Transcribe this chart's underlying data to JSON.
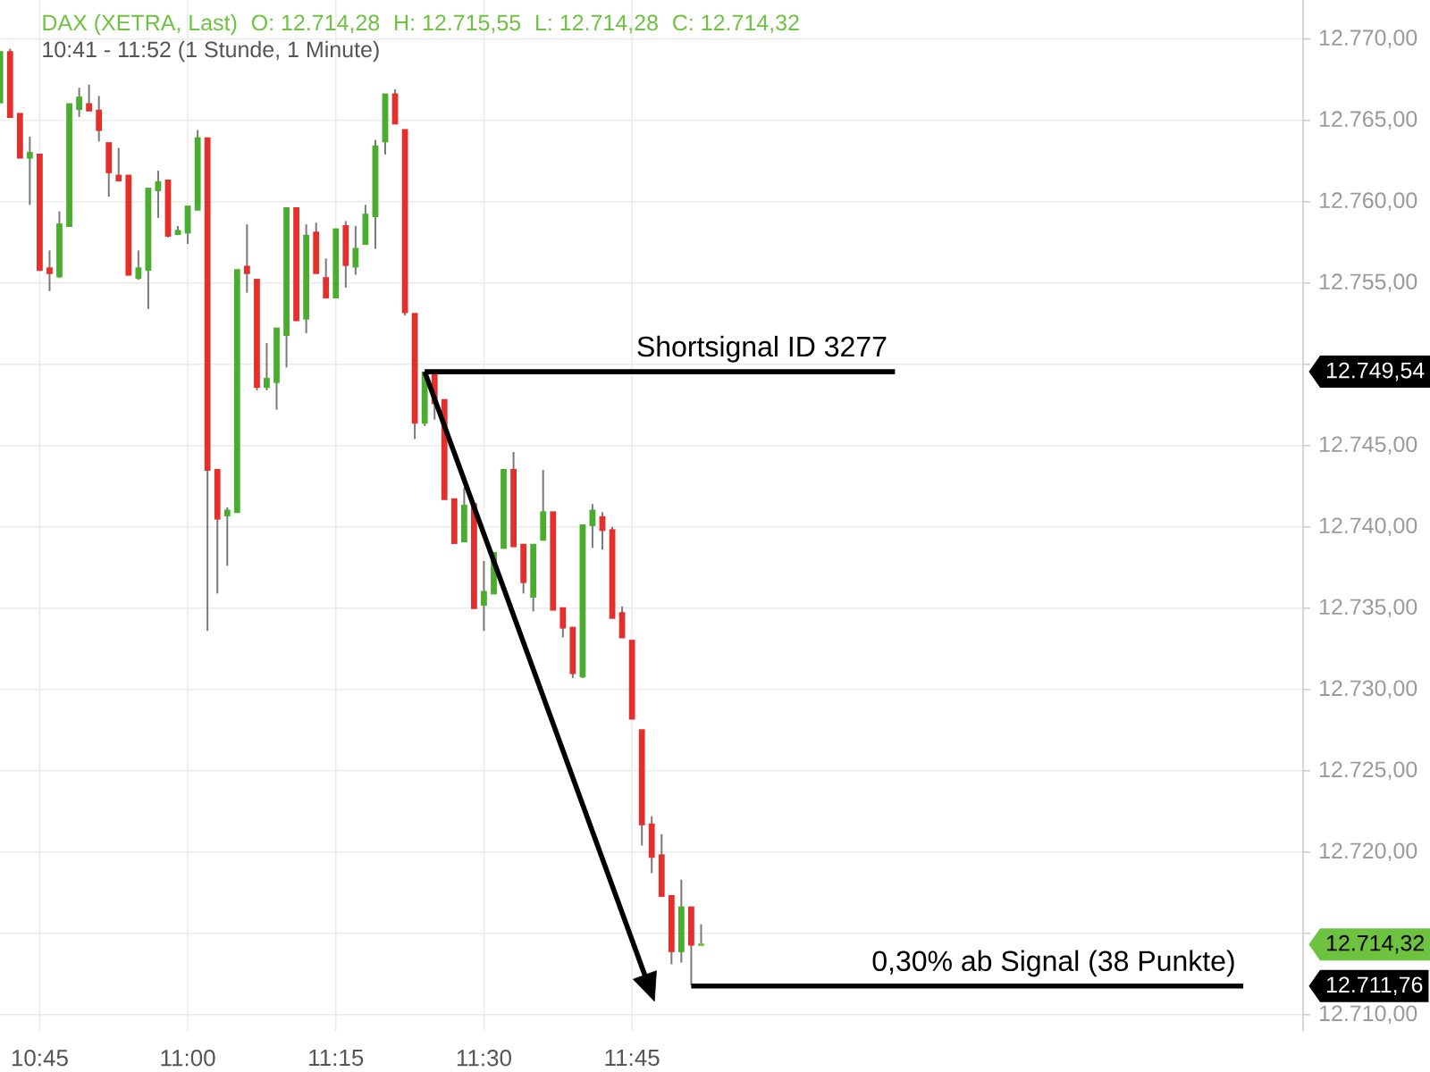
{
  "chart_data": {
    "type": "candlestick",
    "title": "DAX (XETRA, Last)",
    "subtitle": "10:41 - 11:52  (1 Stunde, 1 Minute)",
    "annotations": [
      "O: 12.714,28",
      "H: 12.715,55",
      "L: 12.714,28",
      "C: 12.714,32"
    ],
    "x": [
      10.6833,
      10.7,
      10.7167,
      10.7333,
      10.75,
      10.7667,
      10.7833,
      10.8,
      10.8167,
      10.8333,
      10.85,
      10.8667,
      10.8833,
      10.9,
      10.9167,
      10.9333,
      10.95,
      10.9667,
      10.9833,
      11.0,
      11.0167,
      11.0333,
      11.05,
      11.0667,
      11.0833,
      11.1,
      11.1167,
      11.1333,
      11.15,
      11.1667,
      11.1833,
      11.2,
      11.2167,
      11.2333,
      11.25,
      11.2667,
      11.2833,
      11.3,
      11.3167,
      11.3333,
      11.35,
      11.3667,
      11.3833,
      11.4,
      11.4167,
      11.4333,
      11.45,
      11.4667,
      11.4833,
      11.5,
      11.5167,
      11.5333,
      11.55,
      11.5667,
      11.5833,
      11.6,
      11.6167,
      11.6333,
      11.65,
      11.6667,
      11.6833,
      11.7,
      11.7167,
      11.7333,
      11.75,
      11.7667,
      11.7833,
      11.8,
      11.8167,
      11.8333,
      11.85,
      11.8667
    ],
    "ohlc": [
      [
        12766.1,
        12769.2,
        12766.1,
        12769.2
      ],
      [
        12769.2,
        12769.4,
        12765.2,
        12765.2
      ],
      [
        12765.4,
        12765.4,
        12762.7,
        12762.7
      ],
      [
        12762.7,
        12764.0,
        12759.8,
        12763.0
      ],
      [
        12762.9,
        12762.9,
        12755.8,
        12755.8
      ],
      [
        12755.9,
        12757.0,
        12754.5,
        12755.6
      ],
      [
        12755.4,
        12759.4,
        12755.3,
        12758.6
      ],
      [
        12758.5,
        12766.0,
        12758.5,
        12766.0
      ],
      [
        12765.7,
        12767.0,
        12765.2,
        12766.4
      ],
      [
        12766.0,
        12767.2,
        12765.6,
        12765.6
      ],
      [
        12765.6,
        12766.5,
        12763.7,
        12764.4
      ],
      [
        12763.6,
        12763.6,
        12760.3,
        12761.8
      ],
      [
        12761.6,
        12763.3,
        12761.3,
        12761.3
      ],
      [
        12761.6,
        12761.6,
        12755.5,
        12755.5
      ],
      [
        12755.3,
        12757.0,
        12755.2,
        12755.9
      ],
      [
        12755.8,
        12760.8,
        12753.4,
        12760.8
      ],
      [
        12760.7,
        12761.9,
        12759.0,
        12761.2
      ],
      [
        12761.3,
        12761.3,
        12757.8,
        12757.9
      ],
      [
        12758.0,
        12758.5,
        12758.0,
        12758.2
      ],
      [
        12758.1,
        12759.7,
        12757.4,
        12759.7
      ],
      [
        12759.5,
        12764.4,
        12759.5,
        12763.9
      ],
      [
        12763.9,
        12763.9,
        12733.6,
        12743.5
      ],
      [
        12743.5,
        12743.5,
        12735.9,
        12740.5
      ],
      [
        12740.7,
        12741.2,
        12737.6,
        12741.0
      ],
      [
        12740.9,
        12755.8,
        12740.9,
        12755.8
      ],
      [
        12756.0,
        12758.6,
        12754.4,
        12755.6
      ],
      [
        12755.2,
        12755.2,
        12748.4,
        12748.6
      ],
      [
        12748.6,
        12751.3,
        12748.4,
        12749.1
      ],
      [
        12748.9,
        12752.2,
        12747.2,
        12752.2
      ],
      [
        12751.8,
        12759.6,
        12749.8,
        12759.6
      ],
      [
        12759.6,
        12759.6,
        12752.7,
        12752.7
      ],
      [
        12752.8,
        12758.6,
        12751.9,
        12757.9
      ],
      [
        12758.1,
        12758.7,
        12755.6,
        12755.6
      ],
      [
        12755.3,
        12756.5,
        12754.1,
        12754.1
      ],
      [
        12754.1,
        12758.3,
        12754.1,
        12758.3
      ],
      [
        12758.5,
        12758.8,
        12754.7,
        12756.1
      ],
      [
        12756.0,
        12758.5,
        12755.5,
        12757.1
      ],
      [
        12757.4,
        12759.8,
        12757.4,
        12759.2
      ],
      [
        12759.1,
        12763.8,
        12757.1,
        12763.4
      ],
      [
        12763.7,
        12766.6,
        12762.9,
        12766.6
      ],
      [
        12766.6,
        12766.9,
        12764.8,
        12764.8
      ],
      [
        12764.4,
        12764.4,
        12753.0,
        12753.2
      ],
      [
        12753.1,
        12753.1,
        12745.4,
        12746.4
      ],
      [
        12746.4,
        12749.5,
        12746.2,
        12749.5
      ],
      [
        12749.4,
        12749.4,
        12746.6,
        12747.6
      ],
      [
        12747.8,
        12747.8,
        12741.7,
        12741.7
      ],
      [
        12741.7,
        12741.7,
        12739.0,
        12739.0
      ],
      [
        12739.1,
        12742.4,
        12739.1,
        12741.3
      ],
      [
        12741.4,
        12741.4,
        12735.0,
        12735.0
      ],
      [
        12735.2,
        12737.9,
        12733.6,
        12736.0
      ],
      [
        12735.9,
        12738.4,
        12735.9,
        12738.4
      ],
      [
        12738.7,
        12743.5,
        12738.7,
        12743.5
      ],
      [
        12743.5,
        12744.6,
        12738.8,
        12738.8
      ],
      [
        12738.9,
        12738.9,
        12735.9,
        12736.6
      ],
      [
        12735.7,
        12738.9,
        12734.8,
        12738.9
      ],
      [
        12739.2,
        12743.5,
        12739.2,
        12740.9
      ],
      [
        12740.9,
        12740.9,
        12734.9,
        12734.9
      ],
      [
        12735.0,
        12735.0,
        12733.2,
        12733.8
      ],
      [
        12733.8,
        12733.8,
        12730.7,
        12731.0
      ],
      [
        12730.8,
        12740.1,
        12730.7,
        12740.1
      ],
      [
        12740.1,
        12741.4,
        12738.7,
        12741.0
      ],
      [
        12740.6,
        12740.9,
        12738.6,
        12739.8
      ],
      [
        12739.8,
        12740.0,
        12734.4,
        12734.4
      ],
      [
        12734.7,
        12735.1,
        12733.2,
        12733.2
      ],
      [
        12733.0,
        12733.0,
        12728.2,
        12728.2
      ],
      [
        12727.5,
        12727.5,
        12720.4,
        12721.7
      ],
      [
        12721.7,
        12722.2,
        12718.7,
        12719.7
      ],
      [
        12719.8,
        12721.1,
        12717.3,
        12717.3
      ],
      [
        12717.3,
        12717.3,
        12713.1,
        12713.9
      ],
      [
        12713.9,
        12718.3,
        12713.2,
        12716.6
      ],
      [
        12716.6,
        12716.6,
        12711.8,
        12714.3
      ],
      [
        12714.28,
        12715.55,
        12714.28,
        12714.32
      ]
    ],
    "colors": [
      "#4aad2f",
      "#e3302d",
      "#e3302d",
      "#4aad2f",
      "#e3302d",
      "#e3302d",
      "#4aad2f",
      "#4aad2f",
      "#4aad2f",
      "#e3302d",
      "#e3302d",
      "#e3302d",
      "#e3302d",
      "#e3302d",
      "#4aad2f",
      "#4aad2f",
      "#4aad2f",
      "#e3302d",
      "#4aad2f",
      "#4aad2f",
      "#4aad2f",
      "#e3302d",
      "#e3302d",
      "#4aad2f",
      "#4aad2f",
      "#e3302d",
      "#e3302d",
      "#4aad2f",
      "#4aad2f",
      "#4aad2f",
      "#e3302d",
      "#4aad2f",
      "#e3302d",
      "#e3302d",
      "#4aad2f",
      "#e3302d",
      "#4aad2f",
      "#4aad2f",
      "#4aad2f",
      "#4aad2f",
      "#e3302d",
      "#e3302d",
      "#e3302d",
      "#4aad2f",
      "#e3302d",
      "#e3302d",
      "#e3302d",
      "#4aad2f",
      "#e3302d",
      "#4aad2f",
      "#4aad2f",
      "#4aad2f",
      "#e3302d",
      "#e3302d",
      "#4aad2f",
      "#4aad2f",
      "#e3302d",
      "#e3302d",
      "#e3302d",
      "#4aad2f",
      "#4aad2f",
      "#e3302d",
      "#e3302d",
      "#e3302d",
      "#e3302d",
      "#e3302d",
      "#e3302d",
      "#e3302d",
      "#e3302d",
      "#4aad2f",
      "#e3302d",
      "#6dc23f"
    ],
    "series": [
      {
        "name": "Shortsignal ID 3277",
        "type": "line",
        "color": "#000000",
        "x": [
          11.4,
          12.194
        ],
        "values": [
          12749.54,
          12749.54
        ]
      },
      {
        "name": "0,30% ab Signal (38 Punkte)",
        "type": "line",
        "color": "#000000",
        "x": [
          11.85,
          12.782
        ],
        "values": [
          12711.76,
          12711.76
        ]
      },
      {
        "type": "line",
        "color": "#000000",
        "marker": "triangle",
        "x": [
          11.4,
          11.777
        ],
        "values": [
          12749.54,
          12711.9
        ]
      }
    ],
    "xlim": [
      10.683,
      12.883
    ],
    "ylim": [
      12709.0,
      12772.4
    ],
    "y2lim": [
      12709.0,
      12772.4
    ],
    "xticks": [
      {
        "value": 10.75,
        "label": "10:45"
      },
      {
        "value": 11.0,
        "label": "11:00"
      },
      {
        "value": 11.25,
        "label": "11:15"
      },
      {
        "value": 11.5,
        "label": "11:30"
      },
      {
        "value": 11.75,
        "label": "11:45"
      }
    ],
    "yticks": [
      {
        "value": 12710,
        "label": "12.710,00"
      },
      {
        "value": 12715,
        "label": null
      },
      {
        "value": 12720,
        "label": "12.720,00"
      },
      {
        "value": 12725,
        "label": "12.725,00"
      },
      {
        "value": 12730,
        "label": "12.730,00"
      },
      {
        "value": 12735,
        "label": "12.735,00"
      },
      {
        "value": 12740,
        "label": "12.740,00"
      },
      {
        "value": 12745,
        "label": "12.745,00"
      },
      {
        "value": 12750,
        "label": null
      },
      {
        "value": 12755,
        "label": "12.755,00"
      },
      {
        "value": 12760,
        "label": "12.760,00"
      },
      {
        "value": 12765,
        "label": "12.765,00"
      },
      {
        "value": 12770,
        "label": "12.770,00"
      }
    ],
    "y2ticks": [
      {
        "value": 12711.76,
        "label": "12.711,76"
      },
      {
        "value": 12714.32,
        "label": "12.714,32"
      },
      {
        "value": 12749.54,
        "label": "12.749,54"
      }
    ],
    "grid": true
  }
}
